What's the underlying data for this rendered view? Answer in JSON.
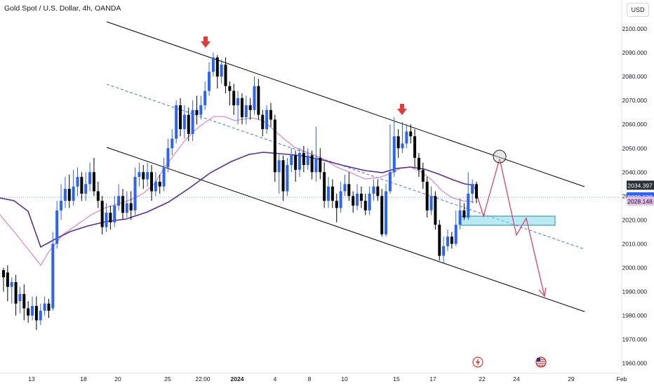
{
  "header": {
    "title": "Gold Spot / U.S. Dollar, 4h, OANDA",
    "currency_button": "USD"
  },
  "chart_data": {
    "type": "candlestick",
    "title": "Gold Spot / U.S. Dollar, 4h, OANDA",
    "ylim": [
      1955,
      2105
    ],
    "y_ticks": [
      "2100.000",
      "2090.000",
      "2080.000",
      "2070.000",
      "2060.000",
      "2050.000",
      "2040.000",
      "2030.000",
      "2020.000",
      "2010.000",
      "2000.000",
      "1990.000",
      "1980.000",
      "1970.000",
      "1960.000"
    ],
    "x_ticks": [
      {
        "label": "13",
        "bold": false
      },
      {
        "label": "18",
        "bold": false
      },
      {
        "label": "20",
        "bold": false
      },
      {
        "label": "25",
        "bold": false
      },
      {
        "label": "22:00",
        "bold": false
      },
      {
        "label": "2024",
        "bold": true
      },
      {
        "label": "4",
        "bold": false
      },
      {
        "label": "8",
        "bold": false
      },
      {
        "label": "10",
        "bold": false
      },
      {
        "label": "15",
        "bold": false
      },
      {
        "label": "17",
        "bold": false
      },
      {
        "label": "22",
        "bold": false
      },
      {
        "label": "24",
        "bold": false
      },
      {
        "label": "29",
        "bold": false
      },
      {
        "label": "Feb",
        "bold": false
      }
    ],
    "price_labels": [
      {
        "value": "2034.397",
        "price": 2034.4,
        "color": "#2a2e39",
        "text_color": "#ffffff"
      },
      {
        "value": "2029.620",
        "price": 2029.5,
        "color": "#2962ff",
        "text_color": "#ffffff"
      },
      {
        "value": "2028.148",
        "price": 2027.8,
        "color": "#e1bee7",
        "text_color": "#131722"
      }
    ],
    "colors": {
      "up": "#2962ff",
      "down": "#000000",
      "channel": "#000000",
      "midline": "#2962ff",
      "ma_fast": "#d98bd0",
      "ma_slow": "#5b2c9a",
      "projection": "#e0406a",
      "zone_fill": "#7fd8e8",
      "zone_stroke": "#1e8fa8",
      "arrow": "#e53935"
    }
  }
}
